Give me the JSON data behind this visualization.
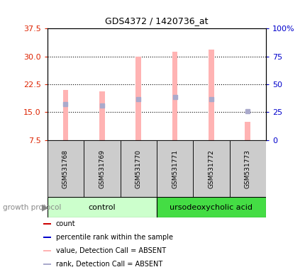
{
  "title": "GDS4372 / 1420736_at",
  "samples": [
    "GSM531768",
    "GSM531769",
    "GSM531770",
    "GSM531771",
    "GSM531772",
    "GSM531773"
  ],
  "bar_heights": [
    21.0,
    20.6,
    30.0,
    31.2,
    31.8,
    12.5
  ],
  "rank_markers": [
    17.2,
    16.8,
    18.5,
    19.0,
    18.6,
    15.3
  ],
  "ylim_left": [
    7.5,
    37.5
  ],
  "ylim_right": [
    0,
    100
  ],
  "yticks_left": [
    7.5,
    15.0,
    22.5,
    30.0,
    37.5
  ],
  "yticks_right": [
    0,
    25,
    50,
    75,
    100
  ],
  "bar_color": "#FFB3B3",
  "rank_color": "#AAAACC",
  "left_tick_color": "#DD2200",
  "right_tick_color": "#0000CC",
  "control_bg": "#CCFFCC",
  "treatment_bg": "#44DD44",
  "sample_bg": "#CCCCCC",
  "group_label_control": "control",
  "group_label_treatment": "ursodeoxycholic acid",
  "growth_protocol_label": "growth protocol",
  "n_control": 3,
  "n_treatment": 3,
  "legend_items": [
    {
      "color": "#CC0000",
      "label": "count"
    },
    {
      "color": "#0000CC",
      "label": "percentile rank within the sample"
    },
    {
      "color": "#FFB3B3",
      "label": "value, Detection Call = ABSENT"
    },
    {
      "color": "#AAAACC",
      "label": "rank, Detection Call = ABSENT"
    }
  ],
  "bar_width": 0.15
}
